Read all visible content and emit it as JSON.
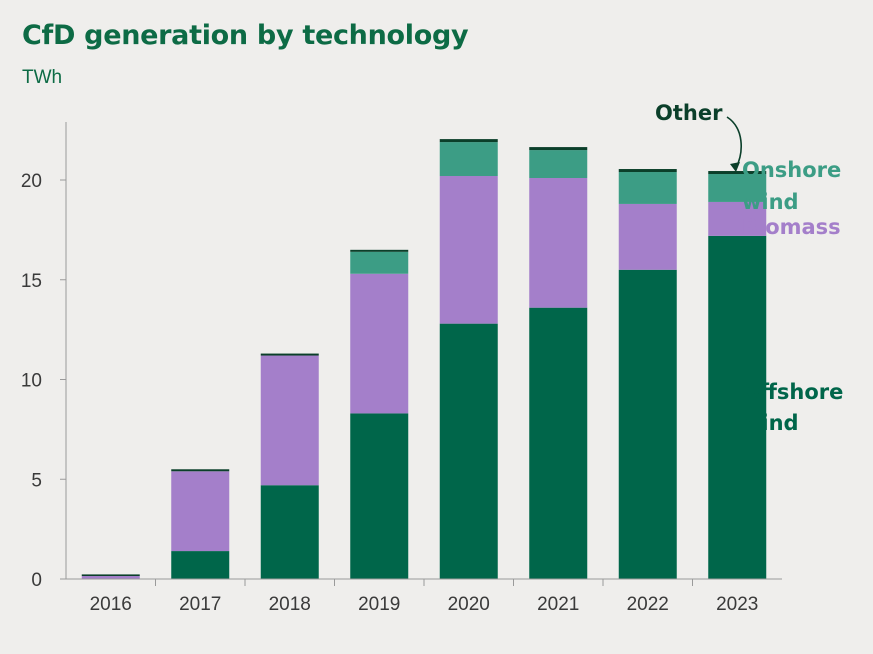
{
  "title": "CfD generation by technology",
  "unit": "TWh",
  "colors": {
    "offshore": "#00664a",
    "biomass": "#a47fca",
    "onshore": "#3c9d85",
    "other": "#0b3f2a",
    "axis": "#9a9a9a",
    "text": "#3a3a3a",
    "title": "#0d6b45"
  },
  "chart_data": {
    "type": "bar",
    "stacked": true,
    "title": "CfD generation by technology",
    "ylabel": "TWh",
    "xlabel": "",
    "ylim": [
      0,
      23
    ],
    "yticks": [
      0,
      5,
      10,
      15,
      20
    ],
    "grid": false,
    "categories": [
      "2016",
      "2017",
      "2018",
      "2019",
      "2020",
      "2021",
      "2022",
      "2023"
    ],
    "series": [
      {
        "name": "Offshore wind",
        "key": "offshore",
        "values": [
          0.0,
          1.4,
          4.7,
          8.3,
          12.8,
          13.6,
          15.5,
          17.2
        ]
      },
      {
        "name": "Biomass",
        "key": "biomass",
        "values": [
          0.15,
          4.0,
          6.5,
          7.0,
          7.4,
          6.5,
          3.3,
          1.7
        ]
      },
      {
        "name": "Onshore wind",
        "key": "onshore",
        "values": [
          0.0,
          0.0,
          0.0,
          1.1,
          1.7,
          1.4,
          1.6,
          1.4
        ]
      },
      {
        "name": "Other",
        "key": "other",
        "values": [
          0.08,
          0.1,
          0.1,
          0.1,
          0.15,
          0.15,
          0.15,
          0.15
        ]
      }
    ],
    "legend": {
      "other": "Other",
      "onshore_line1": "Onshore",
      "onshore_line2": "wind",
      "biomass": "Biomass",
      "offshore_line1": "Offshore",
      "offshore_line2": "wind"
    }
  }
}
